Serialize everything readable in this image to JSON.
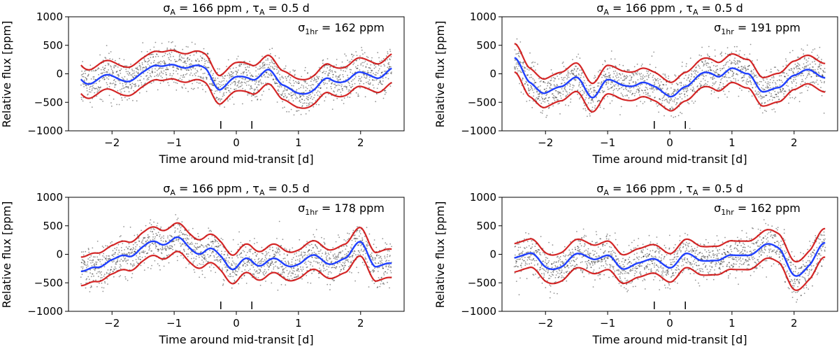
{
  "figure": {
    "panels": [
      {
        "title_prefix": "σ",
        "title_sub1": "A",
        "title_mid": " = 166 ppm , τ",
        "title_sub2": "A",
        "title_suffix": " = 0.5 d",
        "annot_prefix": "σ",
        "annot_sub": "1hr",
        "annot_suffix": " = 162 ppm",
        "xlabel": "Time around mid-transit [d]",
        "ylabel": "Relative flux [ppm]"
      },
      {
        "title_prefix": "σ",
        "title_sub1": "A",
        "title_mid": " = 166 ppm , τ",
        "title_sub2": "A",
        "title_suffix": " = 0.5 d",
        "annot_prefix": "σ",
        "annot_sub": "1hr",
        "annot_suffix": " = 191 ppm",
        "xlabel": "Time around mid-transit [d]",
        "ylabel": "Relative flux [ppm]"
      },
      {
        "title_prefix": "σ",
        "title_sub1": "A",
        "title_mid": " = 166 ppm , τ",
        "title_sub2": "A",
        "title_suffix": " = 0.5 d",
        "annot_prefix": "σ",
        "annot_sub": "1hr",
        "annot_suffix": " = 178 ppm",
        "xlabel": "Time around mid-transit [d]",
        "ylabel": "Relative flux [ppm]"
      },
      {
        "title_prefix": "σ",
        "title_sub1": "A",
        "title_mid": " = 166 ppm , τ",
        "title_sub2": "A",
        "title_suffix": " = 0.5 d",
        "annot_prefix": "σ",
        "annot_sub": "1hr",
        "annot_suffix": " = 162 ppm",
        "xlabel": "Time around mid-transit [d]",
        "ylabel": "Relative flux [ppm]"
      }
    ]
  },
  "chart_data": [
    {
      "type": "scatter",
      "title": "σA = 166 ppm , τA = 0.5 d",
      "annotation": "σ1hr = 162 ppm",
      "xlabel": "Time around mid-transit [d]",
      "ylabel": "Relative flux [ppm]",
      "xlim": [
        -2.7,
        2.7
      ],
      "ylim": [
        -1000,
        1000
      ],
      "xticks": [
        -2,
        -1,
        0,
        1,
        2
      ],
      "xtick_labels": [
        "−2",
        "−1",
        "0",
        "1",
        "2"
      ],
      "yticks": [
        -1000,
        -500,
        0,
        500,
        1000
      ],
      "ytick_labels": [
        "−1000",
        "−500",
        "0",
        "500",
        "1000"
      ],
      "transit_markers_x": [
        -0.25,
        0.25
      ],
      "series": [
        {
          "name": "noisy samples",
          "color": "#000000"
        },
        {
          "name": "GP model",
          "color": "#1f3fff",
          "x": [
            -2.5,
            -2.25,
            -2.0,
            -1.75,
            -1.5,
            -1.25,
            -1.0,
            -0.75,
            -0.5,
            -0.25,
            0.0,
            0.25,
            0.5,
            0.75,
            1.0,
            1.25,
            1.5,
            1.75,
            2.0,
            2.25,
            2.5
          ],
          "y": [
            -100,
            -60,
            -80,
            -40,
            0,
            60,
            200,
            100,
            120,
            -200,
            -150,
            -100,
            80,
            -220,
            -250,
            -300,
            -150,
            -100,
            -40,
            20,
            100
          ]
        },
        {
          "name": "upper band",
          "color": "#cc0000",
          "offset": 250
        },
        {
          "name": "lower band",
          "color": "#cc0000",
          "offset": -250
        }
      ]
    },
    {
      "type": "scatter",
      "title": "σA = 166 ppm , τA = 0.5 d",
      "annotation": "σ1hr = 191 ppm",
      "xlabel": "Time around mid-transit [d]",
      "ylabel": "Relative flux [ppm]",
      "xlim": [
        -2.7,
        2.7
      ],
      "ylim": [
        -1000,
        1000
      ],
      "xticks": [
        -2,
        -1,
        0,
        1,
        2
      ],
      "xtick_labels": [
        "−2",
        "−1",
        "0",
        "1",
        "2"
      ],
      "yticks": [
        -1000,
        -500,
        0,
        500,
        1000
      ],
      "ytick_labels": [
        "−1000",
        "−500",
        "0",
        "500",
        "1000"
      ],
      "transit_markers_x": [
        -0.25,
        0.25
      ],
      "series": [
        {
          "name": "noisy samples",
          "color": "#000000"
        },
        {
          "name": "GP model",
          "color": "#1f3fff",
          "x": [
            -2.5,
            -2.25,
            -2.0,
            -1.75,
            -1.5,
            -1.25,
            -1.0,
            -0.75,
            -0.5,
            -0.25,
            0.0,
            0.25,
            0.5,
            0.75,
            1.0,
            1.25,
            1.5,
            1.75,
            2.0,
            2.25,
            2.5
          ],
          "y": [
            200,
            -100,
            -300,
            -250,
            -100,
            -400,
            -100,
            -150,
            -200,
            -300,
            -350,
            -150,
            -50,
            -100,
            150,
            0,
            -300,
            -250,
            -50,
            50,
            0
          ]
        },
        {
          "name": "upper band",
          "color": "#cc0000",
          "offset": 250
        },
        {
          "name": "lower band",
          "color": "#cc0000",
          "offset": -250
        }
      ]
    },
    {
      "type": "scatter",
      "title": "σA = 166 ppm , τA = 0.5 d",
      "annotation": "σ1hr = 178 ppm",
      "xlabel": "Time around mid-transit [d]",
      "ylabel": "Relative flux [ppm]",
      "xlim": [
        -2.7,
        2.7
      ],
      "ylim": [
        -1000,
        1000
      ],
      "xticks": [
        -2,
        -1,
        0,
        1,
        2
      ],
      "xtick_labels": [
        "−2",
        "−1",
        "0",
        "1",
        "2"
      ],
      "yticks": [
        -1000,
        -500,
        0,
        500,
        1000
      ],
      "ytick_labels": [
        "−1000",
        "−500",
        "0",
        "500",
        "1000"
      ],
      "transit_markers_x": [
        -0.25,
        0.25
      ],
      "series": [
        {
          "name": "noisy samples",
          "color": "#000000"
        },
        {
          "name": "GP model",
          "color": "#1f3fff",
          "x": [
            -2.5,
            -2.25,
            -2.0,
            -1.75,
            -1.5,
            -1.25,
            -1.0,
            -0.75,
            -0.5,
            -0.25,
            0.0,
            0.25,
            0.5,
            0.75,
            1.0,
            1.25,
            1.5,
            1.75,
            2.0,
            2.25,
            2.5
          ],
          "y": [
            -300,
            -200,
            -100,
            0,
            100,
            200,
            250,
            150,
            50,
            0,
            -250,
            -150,
            -100,
            -200,
            -100,
            -50,
            -150,
            -100,
            200,
            -200,
            -150
          ]
        },
        {
          "name": "upper band",
          "color": "#cc0000",
          "offset": 250
        },
        {
          "name": "lower band",
          "color": "#cc0000",
          "offset": -250
        }
      ]
    },
    {
      "type": "scatter",
      "title": "σA = 166 ppm , τA = 0.5 d",
      "annotation": "σ1hr = 162 ppm",
      "xlabel": "Time around mid-transit [d]",
      "ylabel": "Relative flux [ppm]",
      "xlim": [
        -2.7,
        2.7
      ],
      "ylim": [
        -1000,
        1000
      ],
      "xticks": [
        -2,
        -1,
        0,
        1,
        2
      ],
      "xtick_labels": [
        "−2",
        "−1",
        "0",
        "1",
        "2"
      ],
      "yticks": [
        -1000,
        -500,
        0,
        500,
        1000
      ],
      "ytick_labels": [
        "−1000",
        "−500",
        "0",
        "500",
        "1000"
      ],
      "transit_markers_x": [
        -0.25,
        0.25
      ],
      "series": [
        {
          "name": "noisy samples",
          "color": "#000000"
        },
        {
          "name": "GP model",
          "color": "#1f3fff",
          "x": [
            -2.5,
            -2.25,
            -2.0,
            -1.75,
            -1.5,
            -1.25,
            -1.0,
            -0.75,
            -0.5,
            -0.25,
            0.0,
            0.25,
            0.5,
            0.75,
            1.0,
            1.25,
            1.5,
            1.75,
            2.0,
            2.25,
            2.5
          ],
          "y": [
            0,
            -50,
            -200,
            -150,
            -50,
            -100,
            0,
            -250,
            -150,
            -100,
            -200,
            0,
            -150,
            -100,
            0,
            50,
            100,
            0,
            -250,
            -150,
            100
          ]
        },
        {
          "name": "upper band",
          "color": "#cc0000",
          "offset": 250
        },
        {
          "name": "lower band",
          "color": "#cc0000",
          "offset": -250
        }
      ]
    }
  ]
}
